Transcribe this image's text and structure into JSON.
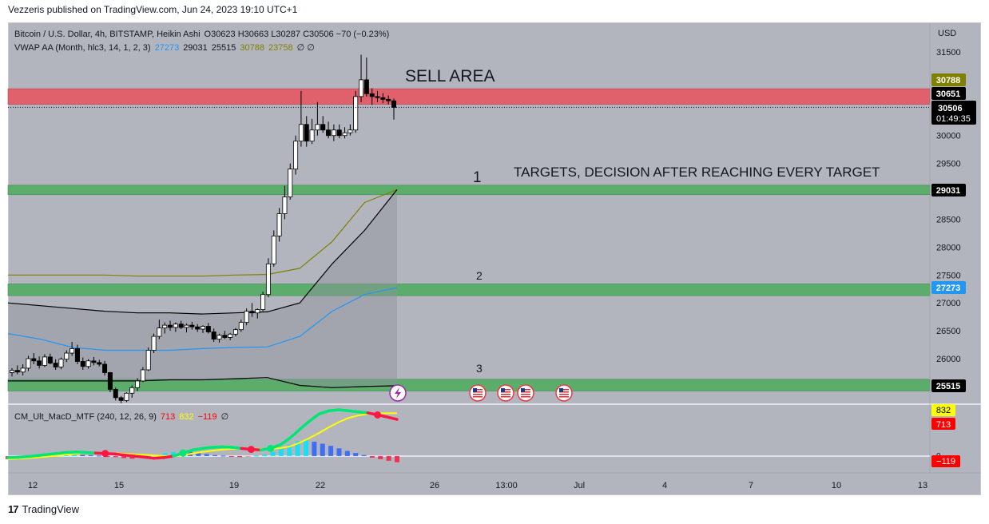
{
  "publisher_line": "Vezzeris published on TradingView.com, Jun 24, 2023 19:10 UTC+1",
  "legend": {
    "symbol": "Bitcoin / U.S. Dollar, 4h, BITSTAMP, Heikin Ashi",
    "ohlc": "O30623 H30663 L30287 C30506 −70 (−0.23%)",
    "vwap_name": "VWAP AA (Month, hlc3, 14, 1, 2, 3)",
    "vwap_v1": "27273",
    "vwap_v2": "29031",
    "vwap_v3": "25515",
    "vwap_v4": "30788",
    "vwap_v5": "23758",
    "vwap_tail": "∅ ∅",
    "macd_name": "CM_Ult_MacD_MTF (240, 12, 26, 9)",
    "macd_v1": "713",
    "macd_v2": "832",
    "macd_v3": "−119",
    "macd_tail": "∅"
  },
  "currency": "USD",
  "annotations": {
    "sell_area": "SELL AREA",
    "targets": "TARGETS, DECISION AFTER REACHING EVERY TARGET",
    "t1": "1",
    "t2": "2",
    "t3": "3"
  },
  "price_badges": {
    "b30788": "30788",
    "b30651": "30651",
    "b30506": "30506",
    "countdown": "01:49:35",
    "b29031": "29031",
    "b27273": "27273",
    "b25515": "25515"
  },
  "macd_badges": {
    "m832": "832",
    "m713": "713",
    "m0": "0",
    "mneg": "−119"
  },
  "footer": {
    "brand": "TradingView"
  },
  "colors": {
    "background": "#b2b5be",
    "sell_zone": "#e0606c",
    "target_zone": "#5cad6c",
    "candle_up": "#ffffff",
    "candle_down": "#000000",
    "vwap_blue": "#2196f3",
    "vwap_olive": "#808000",
    "badge_olive": "#808000",
    "badge_blue": "#2196f3",
    "badge_red": "#ff0000",
    "badge_yellow": "#ffff00"
  },
  "chart_data": {
    "type": "candlestick",
    "title": "Bitcoin / U.S. Dollar, 4h, BITSTAMP, Heikin Ashi",
    "price_axis": {
      "ticks": [
        31500,
        31000,
        30500,
        30000,
        29500,
        29000,
        28500,
        28000,
        27500,
        27000,
        26500,
        26000
      ],
      "range": [
        25300,
        31850
      ]
    },
    "time_axis": {
      "labels": [
        "12",
        "15",
        "19",
        "22",
        "26",
        "13:00",
        "Jul",
        "4",
        "7",
        "10",
        "13"
      ]
    },
    "zones": [
      {
        "name": "SELL AREA",
        "low": 30560,
        "high": 30840
      },
      {
        "name": "1",
        "low": 28940,
        "high": 29110
      },
      {
        "name": "2",
        "low": 27130,
        "high": 27340
      },
      {
        "name": "3",
        "low": 25420,
        "high": 25630
      }
    ],
    "current_price": 30506,
    "candles": [
      {
        "o": 25750,
        "h": 25830,
        "l": 25680,
        "c": 25790
      },
      {
        "o": 25790,
        "h": 25880,
        "l": 25720,
        "c": 25760
      },
      {
        "o": 25760,
        "h": 25900,
        "l": 25700,
        "c": 25830
      },
      {
        "o": 25830,
        "h": 26050,
        "l": 25780,
        "c": 26000
      },
      {
        "o": 26000,
        "h": 26100,
        "l": 25900,
        "c": 25960
      },
      {
        "o": 25960,
        "h": 26040,
        "l": 25820,
        "c": 25880
      },
      {
        "o": 25880,
        "h": 26080,
        "l": 25850,
        "c": 26030
      },
      {
        "o": 26030,
        "h": 26090,
        "l": 25900,
        "c": 25920
      },
      {
        "o": 25920,
        "h": 25990,
        "l": 25800,
        "c": 25850
      },
      {
        "o": 25850,
        "h": 26020,
        "l": 25810,
        "c": 25990
      },
      {
        "o": 25990,
        "h": 26150,
        "l": 25940,
        "c": 26100
      },
      {
        "o": 26100,
        "h": 26300,
        "l": 26050,
        "c": 26180
      },
      {
        "o": 26180,
        "h": 26250,
        "l": 25900,
        "c": 25950
      },
      {
        "o": 25950,
        "h": 26020,
        "l": 25800,
        "c": 25860
      },
      {
        "o": 25860,
        "h": 25990,
        "l": 25820,
        "c": 25960
      },
      {
        "o": 25960,
        "h": 26030,
        "l": 25880,
        "c": 25930
      },
      {
        "o": 25930,
        "h": 25980,
        "l": 25860,
        "c": 25900
      },
      {
        "o": 25900,
        "h": 25960,
        "l": 25700,
        "c": 25750
      },
      {
        "o": 25750,
        "h": 25760,
        "l": 25400,
        "c": 25450
      },
      {
        "o": 25450,
        "h": 25480,
        "l": 25250,
        "c": 25300
      },
      {
        "o": 25300,
        "h": 25330,
        "l": 25200,
        "c": 25250
      },
      {
        "o": 25250,
        "h": 25400,
        "l": 25220,
        "c": 25380
      },
      {
        "o": 25380,
        "h": 25520,
        "l": 25300,
        "c": 25480
      },
      {
        "o": 25480,
        "h": 25650,
        "l": 25420,
        "c": 25600
      },
      {
        "o": 25600,
        "h": 25850,
        "l": 25580,
        "c": 25800
      },
      {
        "o": 25800,
        "h": 26200,
        "l": 25780,
        "c": 26150
      },
      {
        "o": 26150,
        "h": 26450,
        "l": 26100,
        "c": 26400
      },
      {
        "o": 26400,
        "h": 26700,
        "l": 26350,
        "c": 26550
      },
      {
        "o": 26550,
        "h": 26650,
        "l": 26450,
        "c": 26600
      },
      {
        "o": 26600,
        "h": 26680,
        "l": 26500,
        "c": 26560
      },
      {
        "o": 26560,
        "h": 26650,
        "l": 26480,
        "c": 26620
      },
      {
        "o": 26620,
        "h": 26680,
        "l": 26530,
        "c": 26560
      },
      {
        "o": 26560,
        "h": 26630,
        "l": 26470,
        "c": 26600
      },
      {
        "o": 26600,
        "h": 26660,
        "l": 26520,
        "c": 26570
      },
      {
        "o": 26570,
        "h": 26620,
        "l": 26480,
        "c": 26530
      },
      {
        "o": 26530,
        "h": 26600,
        "l": 26460,
        "c": 26580
      },
      {
        "o": 26580,
        "h": 26640,
        "l": 26450,
        "c": 26480
      },
      {
        "o": 26480,
        "h": 26540,
        "l": 26300,
        "c": 26350
      },
      {
        "o": 26350,
        "h": 26450,
        "l": 26290,
        "c": 26420
      },
      {
        "o": 26420,
        "h": 26500,
        "l": 26350,
        "c": 26380
      },
      {
        "o": 26380,
        "h": 26460,
        "l": 26330,
        "c": 26440
      },
      {
        "o": 26440,
        "h": 26550,
        "l": 26400,
        "c": 26520
      },
      {
        "o": 26520,
        "h": 26700,
        "l": 26480,
        "c": 26650
      },
      {
        "o": 26650,
        "h": 26900,
        "l": 26600,
        "c": 26850
      },
      {
        "o": 26850,
        "h": 27000,
        "l": 26750,
        "c": 26820
      },
      {
        "o": 26820,
        "h": 26900,
        "l": 26720,
        "c": 26880
      },
      {
        "o": 26880,
        "h": 27200,
        "l": 26850,
        "c": 27150
      },
      {
        "o": 27150,
        "h": 27800,
        "l": 27100,
        "c": 27700
      },
      {
        "o": 27700,
        "h": 28300,
        "l": 27650,
        "c": 28200
      },
      {
        "o": 28200,
        "h": 28700,
        "l": 28100,
        "c": 28600
      },
      {
        "o": 28600,
        "h": 29100,
        "l": 28500,
        "c": 28900
      },
      {
        "o": 28900,
        "h": 29500,
        "l": 28850,
        "c": 29400
      },
      {
        "o": 29400,
        "h": 30000,
        "l": 29300,
        "c": 29900
      },
      {
        "o": 29900,
        "h": 30800,
        "l": 29800,
        "c": 30200
      },
      {
        "o": 30200,
        "h": 30350,
        "l": 29800,
        "c": 29900
      },
      {
        "o": 29900,
        "h": 30300,
        "l": 29850,
        "c": 30100
      },
      {
        "o": 30100,
        "h": 30600,
        "l": 30000,
        "c": 30200
      },
      {
        "o": 30200,
        "h": 30350,
        "l": 30050,
        "c": 30100
      },
      {
        "o": 30100,
        "h": 30250,
        "l": 29950,
        "c": 30000
      },
      {
        "o": 30000,
        "h": 30200,
        "l": 29900,
        "c": 30100
      },
      {
        "o": 30100,
        "h": 30200,
        "l": 29950,
        "c": 30000
      },
      {
        "o": 30000,
        "h": 30150,
        "l": 29950,
        "c": 30050
      },
      {
        "o": 30050,
        "h": 30200,
        "l": 30000,
        "c": 30100
      },
      {
        "o": 30100,
        "h": 30800,
        "l": 30050,
        "c": 30700
      },
      {
        "o": 30700,
        "h": 31450,
        "l": 30600,
        "c": 31000
      },
      {
        "o": 31000,
        "h": 31400,
        "l": 30700,
        "c": 30750
      },
      {
        "o": 30750,
        "h": 30850,
        "l": 30550,
        "c": 30700
      },
      {
        "o": 30700,
        "h": 30800,
        "l": 30600,
        "c": 30680
      },
      {
        "o": 30680,
        "h": 30760,
        "l": 30580,
        "c": 30650
      },
      {
        "o": 30650,
        "h": 30720,
        "l": 30560,
        "c": 30623
      },
      {
        "o": 30623,
        "h": 30663,
        "l": 30287,
        "c": 30506
      }
    ],
    "vwap_lines": {
      "upper_band": [
        27500,
        27500,
        27500,
        27500,
        27480,
        27480,
        27480,
        27500,
        27510,
        27620,
        28100,
        28800,
        29031
      ],
      "upper_mid": [
        27000,
        26950,
        26900,
        26850,
        26820,
        26820,
        26800,
        26820,
        26840,
        27000,
        27700,
        28300,
        29031
      ],
      "vwap": [
        26450,
        26350,
        26200,
        26150,
        26150,
        26150,
        26180,
        26200,
        26210,
        26400,
        26850,
        27150,
        27273
      ],
      "lower_mid": [
        25600,
        25600,
        25600,
        25600,
        25600,
        25620,
        25620,
        25640,
        25660,
        25520,
        25480,
        25500,
        25515
      ]
    },
    "macd": {
      "values": {
        "macd": 713,
        "signal": 832,
        "histogram": -119
      },
      "histogram_bars": [
        -60,
        -50,
        -30,
        -10,
        10,
        20,
        30,
        40,
        40,
        30,
        20,
        10,
        -10,
        -20,
        -40,
        -50,
        -30,
        10,
        30,
        60,
        80,
        90,
        80,
        60,
        40,
        20,
        10,
        -10,
        -20,
        -10,
        10,
        30,
        80,
        150,
        220,
        290,
        310,
        280,
        240,
        200,
        150,
        100,
        60,
        20,
        -30,
        -60,
        -90,
        -119
      ],
      "macd_line": [
        -30,
        -25,
        -10,
        10,
        30,
        50,
        70,
        80,
        70,
        60,
        50,
        40,
        20,
        0,
        -20,
        -40,
        -30,
        0,
        60,
        120,
        150,
        170,
        180,
        170,
        150,
        130,
        120,
        150,
        220,
        350,
        520,
        680,
        820,
        880,
        900,
        880,
        860,
        840,
        800,
        760,
        713
      ],
      "signal_line": [
        -60,
        -50,
        -40,
        -25,
        -10,
        10,
        30,
        45,
        55,
        58,
        57,
        53,
        45,
        35,
        25,
        15,
        5,
        5,
        20,
        50,
        80,
        105,
        125,
        140,
        145,
        145,
        140,
        140,
        155,
        190,
        260,
        350,
        450,
        560,
        660,
        740,
        790,
        820,
        830,
        835,
        832
      ]
    }
  }
}
